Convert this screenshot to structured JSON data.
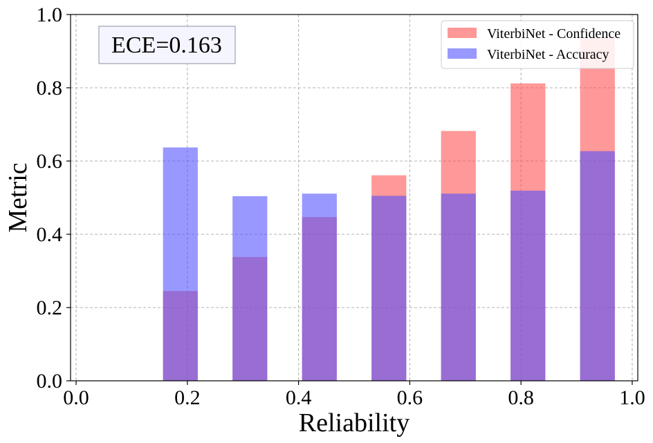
{
  "chart_data": {
    "type": "bar",
    "xlabel": "Reliability",
    "ylabel": "Metric",
    "xlim": [
      -0.01,
      1.01
    ],
    "ylim": [
      0.0,
      1.0
    ],
    "xticks": [
      0.0,
      0.2,
      0.4,
      0.6,
      0.8,
      1.0
    ],
    "xtick_labels": [
      "0.0",
      "0.2",
      "0.4",
      "0.6",
      "0.8",
      "1.0"
    ],
    "yticks": [
      0.0,
      0.2,
      0.4,
      0.6,
      0.8,
      1.0
    ],
    "ytick_labels": [
      "0.0",
      "0.2",
      "0.4",
      "0.6",
      "0.8",
      "1.0"
    ],
    "bar_width": 0.0625,
    "grid": true,
    "legend_position": "top-right",
    "x": [
      0.1875,
      0.3125,
      0.4375,
      0.5625,
      0.6875,
      0.8125,
      0.9375
    ],
    "series": [
      {
        "name": "ViterbiNet - Confidence",
        "color": "#ff4d4d",
        "opacity": 0.58,
        "values": [
          0.245,
          0.338,
          0.447,
          0.561,
          0.682,
          0.812,
          0.935
        ]
      },
      {
        "name": "ViterbiNet - Accuracy",
        "color": "#4d4dff",
        "opacity": 0.58,
        "values": [
          0.637,
          0.504,
          0.511,
          0.505,
          0.511,
          0.519,
          0.627
        ]
      }
    ],
    "annotation": "ECE=0.163"
  }
}
